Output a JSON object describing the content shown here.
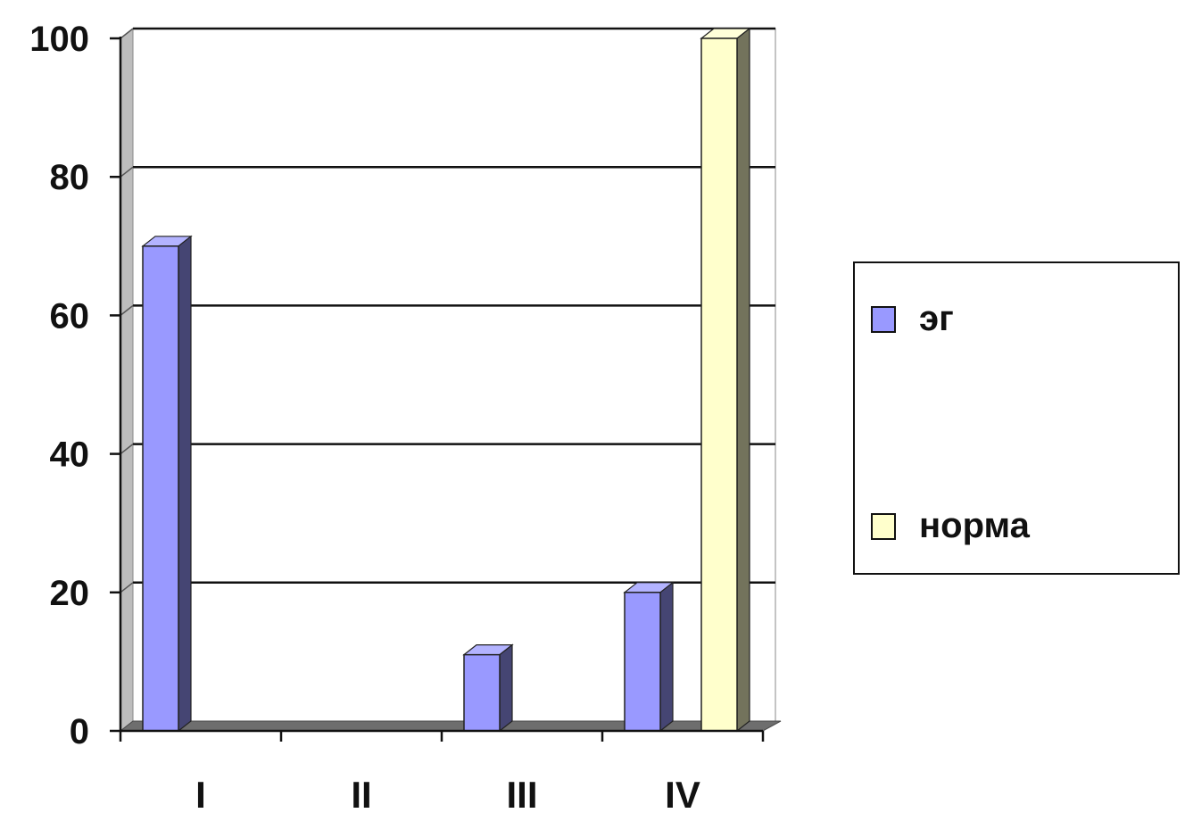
{
  "chart_data": {
    "type": "bar",
    "categories": [
      "I",
      "II",
      "III",
      "IV"
    ],
    "series": [
      {
        "name": "эг",
        "values": [
          70,
          0,
          11,
          20
        ],
        "color": "#9999ff"
      },
      {
        "name": "норма",
        "values": [
          0,
          0,
          0,
          100
        ],
        "color": "#ffffcc"
      }
    ],
    "ylim": [
      0,
      100
    ],
    "yticks": [
      "0",
      "20",
      "40",
      "60",
      "80",
      "100"
    ],
    "grid": true,
    "three_d": true,
    "legend_position": "right"
  },
  "legend": {
    "items": [
      "эг",
      "норма"
    ]
  }
}
